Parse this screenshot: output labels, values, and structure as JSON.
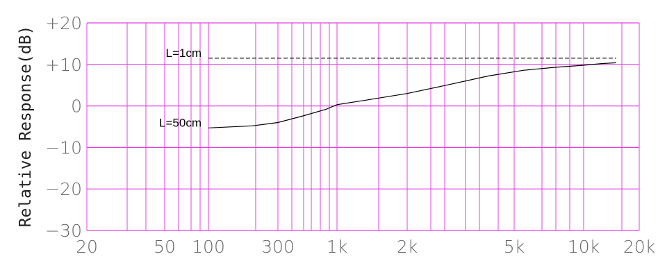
{
  "chart_data": {
    "type": "line",
    "title": "",
    "xlabel": "",
    "ylabel": "Relative Response(dB)",
    "x_scale": "log",
    "ylim": [
      -30,
      20
    ],
    "y_ticks": [
      "+20",
      "+10",
      "0",
      "−10",
      "−20",
      "−30"
    ],
    "x_ticks": [
      "20",
      "50",
      "100",
      "300",
      "1k",
      "2k",
      "5k",
      "10k",
      "20k"
    ],
    "grid": true,
    "grid_color": "#e040e0",
    "series": [
      {
        "name": "L=1cm",
        "style": "dashed",
        "points": [
          [
            100,
            11.5
          ],
          [
            15000,
            11.5
          ]
        ]
      },
      {
        "name": "L=50cm",
        "style": "solid",
        "points": [
          [
            100,
            -5.3
          ],
          [
            200,
            -4.8
          ],
          [
            300,
            -4.0
          ],
          [
            500,
            -2.4
          ],
          [
            800,
            -0.8
          ],
          [
            1000,
            0.3
          ],
          [
            1300,
            1.3
          ],
          [
            2000,
            3.0
          ],
          [
            2800,
            5.0
          ],
          [
            4000,
            7.2
          ],
          [
            5500,
            8.6
          ],
          [
            7500,
            9.3
          ],
          [
            10000,
            9.8
          ],
          [
            12500,
            10.2
          ],
          [
            15000,
            10.4
          ]
        ]
      }
    ]
  }
}
